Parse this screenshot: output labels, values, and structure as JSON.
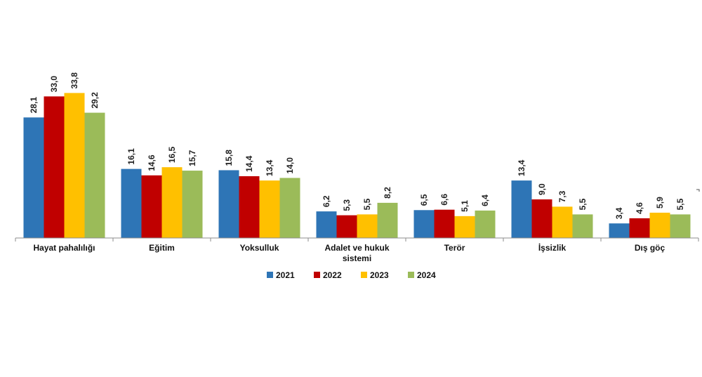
{
  "chart_data": {
    "type": "bar",
    "categories": [
      "Hayat pahalılığı",
      "Eğitim",
      "Yoksulluk",
      "Adalet ve hukuk sistemi",
      "Terör",
      "İşsizlik",
      "Dış göç"
    ],
    "category_lines": [
      [
        "Hayat pahalılığı"
      ],
      [
        "Eğitim"
      ],
      [
        "Yoksulluk"
      ],
      [
        "Adalet ve hukuk",
        "sistemi"
      ],
      [
        "Terör"
      ],
      [
        "İşsizlik"
      ],
      [
        "Dış göç"
      ]
    ],
    "series": [
      {
        "name": "2021",
        "color": "#2e75b6",
        "values": [
          28.1,
          16.1,
          15.8,
          6.2,
          6.5,
          13.4,
          3.4
        ],
        "labels": [
          "28,1",
          "16,1",
          "15,8",
          "6,2",
          "6,5",
          "13,4",
          "3,4"
        ]
      },
      {
        "name": "2022",
        "color": "#c00000",
        "values": [
          33.0,
          14.6,
          14.4,
          5.3,
          6.6,
          9.0,
          4.6
        ],
        "labels": [
          "33,0",
          "14,6",
          "14,4",
          "5,3",
          "6,6",
          "9,0",
          "4,6"
        ]
      },
      {
        "name": "2023",
        "color": "#ffc000",
        "values": [
          33.8,
          16.5,
          13.4,
          5.5,
          5.1,
          7.3,
          5.9
        ],
        "labels": [
          "33,8",
          "16,5",
          "13,4",
          "5,5",
          "5,1",
          "7,3",
          "5,9"
        ]
      },
      {
        "name": "2024",
        "color": "#9bbb59",
        "values": [
          29.2,
          15.7,
          14.0,
          8.2,
          6.4,
          5.5,
          5.5
        ],
        "labels": [
          "29,2",
          "15,7",
          "14,0",
          "8,2",
          "6,4",
          "5,5",
          "5,5"
        ]
      }
    ],
    "title": "",
    "xlabel": "",
    "ylabel": "",
    "ylim": [
      0,
      36
    ],
    "grid": false,
    "legend": "bottom"
  }
}
